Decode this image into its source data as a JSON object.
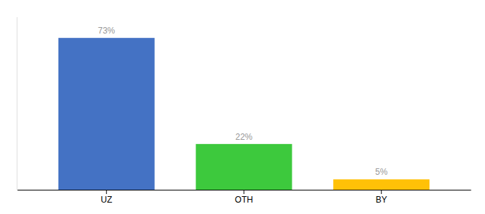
{
  "chart_data": {
    "type": "bar",
    "categories": [
      "UZ",
      "OTH",
      "BY"
    ],
    "values": [
      73,
      22,
      5
    ],
    "value_labels": [
      "73%",
      "22%",
      "5%"
    ],
    "colors": [
      "#4472C4",
      "#3DC93D",
      "#FFC107"
    ],
    "ylim": [
      0,
      83
    ],
    "data_labels": true,
    "tick_labels": "x",
    "grid": false
  }
}
